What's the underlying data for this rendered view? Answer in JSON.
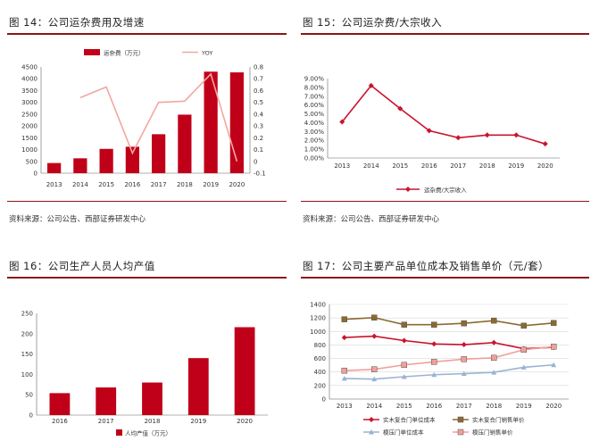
{
  "panels": {
    "p14": {
      "title": "图 14：公司运杂费用及增速",
      "source": "资料来源：公司公告、西部证券研发中心",
      "legend": [
        "运杂费（万元）",
        "YOY"
      ]
    },
    "p15": {
      "title": "图 15：公司运杂费/大宗收入",
      "source": "资料来源：公司公告、西部证券研发中心",
      "legend": [
        "运杂费/大宗收入"
      ]
    },
    "p16": {
      "title": "图 16：公司生产人员人均产值",
      "legend": [
        "人均产值（万元）"
      ]
    },
    "p17": {
      "title": "图 17：公司主要产品单位成本及销售单价（元/套）",
      "legend": [
        "实木复合门单位成本",
        "实木复合门销售单价",
        "模压门单位成本",
        "模压门销售单价"
      ]
    }
  },
  "colors": {
    "rule": "#8c1515",
    "bar": "#c00018",
    "yoy": "#f3a7a1",
    "p17": [
      "#c8142e",
      "#8c6a2f",
      "#9bb3d1",
      "#f0a09a"
    ]
  },
  "chart_data": [
    {
      "id": "p14",
      "type": "bar",
      "categories": [
        "2013",
        "2014",
        "2015",
        "2016",
        "2017",
        "2018",
        "2019",
        "2020"
      ],
      "series": [
        {
          "name": "运杂费（万元）",
          "axis": "left",
          "type": "bar",
          "values": [
            430,
            630,
            1030,
            1120,
            1650,
            2480,
            4300,
            4270
          ]
        },
        {
          "name": "YOY",
          "axis": "right",
          "type": "line",
          "values": [
            null,
            0.54,
            0.63,
            0.07,
            0.5,
            0.51,
            0.74,
            0.0
          ]
        }
      ],
      "ylim": [
        0,
        4500
      ],
      "yticks": [
        "0",
        "500",
        "1000",
        "1500",
        "2000",
        "2500",
        "3000",
        "3500",
        "4000",
        "4500"
      ],
      "y2lim": [
        -0.1,
        0.8
      ],
      "y2ticks": [
        "-0.1",
        "0",
        "0.1",
        "0.2",
        "0.3",
        "0.4",
        "0.5",
        "0.6",
        "0.7",
        "0.8"
      ]
    },
    {
      "id": "p15",
      "type": "line",
      "categories": [
        "2013",
        "2014",
        "2015",
        "2016",
        "2017",
        "2018",
        "2019",
        "2020"
      ],
      "series": [
        {
          "name": "运杂费/大宗收入",
          "values": [
            4.1,
            8.2,
            5.6,
            3.1,
            2.3,
            2.6,
            2.6,
            1.6
          ]
        }
      ],
      "ylim": [
        0,
        9
      ],
      "yticks": [
        "0.00%",
        "1.00%",
        "2.00%",
        "3.00%",
        "4.00%",
        "5.00%",
        "6.00%",
        "7.00%",
        "8.00%",
        "9.00%"
      ]
    },
    {
      "id": "p16",
      "type": "bar",
      "categories": [
        "2016",
        "2017",
        "2018",
        "2019",
        "2020"
      ],
      "series": [
        {
          "name": "人均产值（万元）",
          "values": [
            54,
            68,
            80,
            140,
            216
          ]
        }
      ],
      "ylim": [
        0,
        250
      ],
      "yticks": [
        "0",
        "50",
        "100",
        "150",
        "200",
        "250"
      ]
    },
    {
      "id": "p17",
      "type": "line",
      "categories": [
        "2013",
        "2014",
        "2015",
        "2016",
        "2017",
        "2018",
        "2019",
        "2020"
      ],
      "series": [
        {
          "name": "实木复合门单位成本",
          "values": [
            910,
            930,
            865,
            815,
            805,
            835,
            745,
            765
          ]
        },
        {
          "name": "实木复合门销售单价",
          "values": [
            1180,
            1205,
            1100,
            1100,
            1120,
            1160,
            1085,
            1125
          ]
        },
        {
          "name": "模压门单位成本",
          "values": [
            305,
            295,
            330,
            360,
            375,
            395,
            470,
            505
          ]
        },
        {
          "name": "模压门销售单价",
          "values": [
            420,
            440,
            505,
            550,
            590,
            610,
            730,
            775
          ]
        }
      ],
      "ylim": [
        0,
        1400
      ],
      "yticks": [
        "0",
        "200",
        "400",
        "600",
        "800",
        "1000",
        "1200",
        "1400"
      ]
    }
  ]
}
